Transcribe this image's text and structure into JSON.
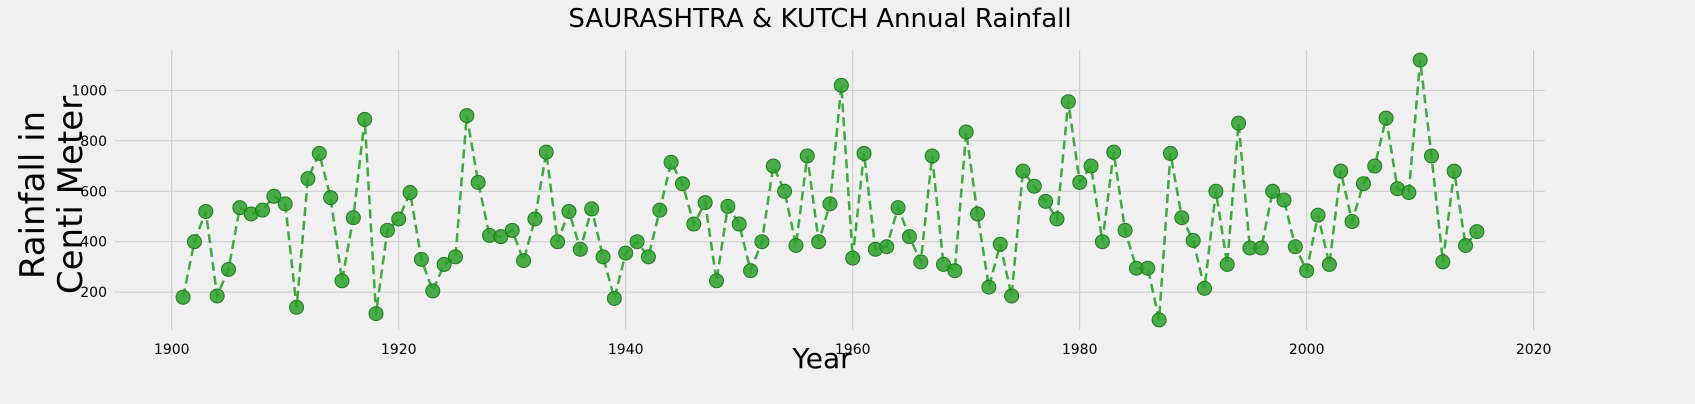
{
  "chart_data": {
    "type": "line",
    "title": "SAURASHTRA & KUTCH Annual Rainfall",
    "xlabel": "Year",
    "ylabel_lines": [
      "Rainfall in",
      "Centi Meter"
    ],
    "xlim": [
      1895,
      2021
    ],
    "ylim": [
      50,
      1160
    ],
    "xticks": [
      1900,
      1920,
      1940,
      1960,
      1980,
      2000,
      2020
    ],
    "yticks": [
      200,
      400,
      600,
      800,
      1000
    ],
    "grid": true,
    "line_style": "dashed",
    "marker": "circle",
    "color": "#2ca02c",
    "x": [
      1901,
      1902,
      1903,
      1904,
      1905,
      1906,
      1907,
      1908,
      1909,
      1910,
      1911,
      1912,
      1913,
      1914,
      1915,
      1916,
      1917,
      1918,
      1919,
      1920,
      1921,
      1922,
      1923,
      1924,
      1925,
      1926,
      1927,
      1928,
      1929,
      1930,
      1931,
      1932,
      1933,
      1934,
      1935,
      1936,
      1937,
      1938,
      1939,
      1940,
      1941,
      1942,
      1943,
      1944,
      1945,
      1946,
      1947,
      1948,
      1949,
      1950,
      1951,
      1952,
      1953,
      1954,
      1955,
      1956,
      1957,
      1958,
      1959,
      1960,
      1961,
      1962,
      1963,
      1964,
      1965,
      1966,
      1967,
      1968,
      1969,
      1970,
      1971,
      1972,
      1973,
      1974,
      1975,
      1976,
      1977,
      1978,
      1979,
      1980,
      1981,
      1982,
      1983,
      1984,
      1985,
      1986,
      1987,
      1988,
      1989,
      1990,
      1991,
      1992,
      1993,
      1994,
      1995,
      1996,
      1997,
      1998,
      1999,
      2000,
      2001,
      2002,
      2003,
      2004,
      2005,
      2006,
      2007,
      2008,
      2009,
      2010,
      2011,
      2012,
      2013,
      2014,
      2015
    ],
    "y": [
      180,
      400,
      520,
      185,
      290,
      535,
      510,
      525,
      580,
      550,
      140,
      650,
      750,
      575,
      245,
      495,
      885,
      115,
      445,
      490,
      595,
      330,
      205,
      310,
      340,
      900,
      635,
      425,
      420,
      445,
      325,
      490,
      755,
      400,
      520,
      370,
      530,
      340,
      175,
      355,
      400,
      340,
      525,
      715,
      630,
      470,
      555,
      245,
      540,
      470,
      285,
      400,
      700,
      600,
      385,
      740,
      400,
      550,
      1020,
      335,
      750,
      370,
      380,
      535,
      420,
      320,
      740,
      310,
      285,
      835,
      510,
      220,
      390,
      185,
      680,
      620,
      560,
      490,
      955,
      635,
      700,
      400,
      755,
      445,
      295,
      295,
      90,
      750,
      495,
      405,
      215,
      600,
      310,
      870,
      375,
      375,
      600,
      565,
      380,
      285,
      505,
      310,
      680,
      480,
      630,
      700,
      890,
      610,
      595,
      1120,
      740,
      320,
      680,
      385,
      440
    ]
  }
}
